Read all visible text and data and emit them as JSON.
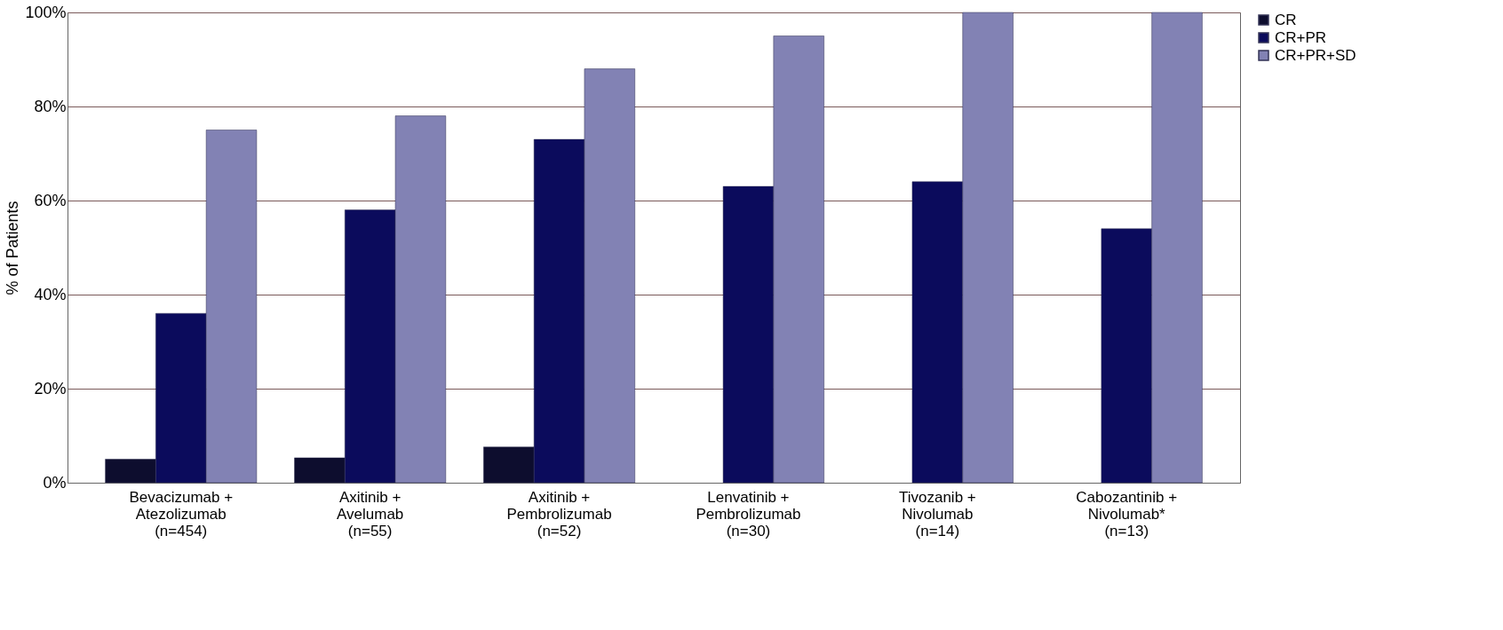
{
  "chart_data": {
    "type": "bar",
    "ylabel": "% of Patients",
    "categories": [
      "Bevacizumab +\nAtezolizumab\n(n=454)",
      "Axitinib +\nAvelumab\n(n=55)",
      "Axitinib +\nPembrolizumab\n(n=52)",
      "Lenvatinib +\nPembrolizumab\n(n=30)",
      "Tivozanib +\nNivolumab\n(n=14)",
      "Cabozantinib +\nNivolumab*\n(n=13)"
    ],
    "series": [
      {
        "name": "CR",
        "color": "#0d0d2e",
        "values": [
          5,
          5.3,
          7.6,
          null,
          null,
          null
        ]
      },
      {
        "name": "CR+PR",
        "color": "#0b0b5c",
        "values": [
          36,
          58,
          73,
          63,
          64,
          54
        ]
      },
      {
        "name": "CR+PR+SD",
        "color": "#8282b4",
        "values": [
          75,
          78,
          88,
          95,
          100,
          100
        ]
      }
    ],
    "ylim": [
      0,
      100
    ],
    "yticks": [
      {
        "value": 0,
        "label": "0%"
      },
      {
        "value": 20,
        "label": "20%"
      },
      {
        "value": 40,
        "label": "40%"
      },
      {
        "value": 60,
        "label": "60%"
      },
      {
        "value": 80,
        "label": "80%"
      },
      {
        "value": 100,
        "label": "100%"
      }
    ],
    "grid": "y",
    "legend": "right"
  }
}
